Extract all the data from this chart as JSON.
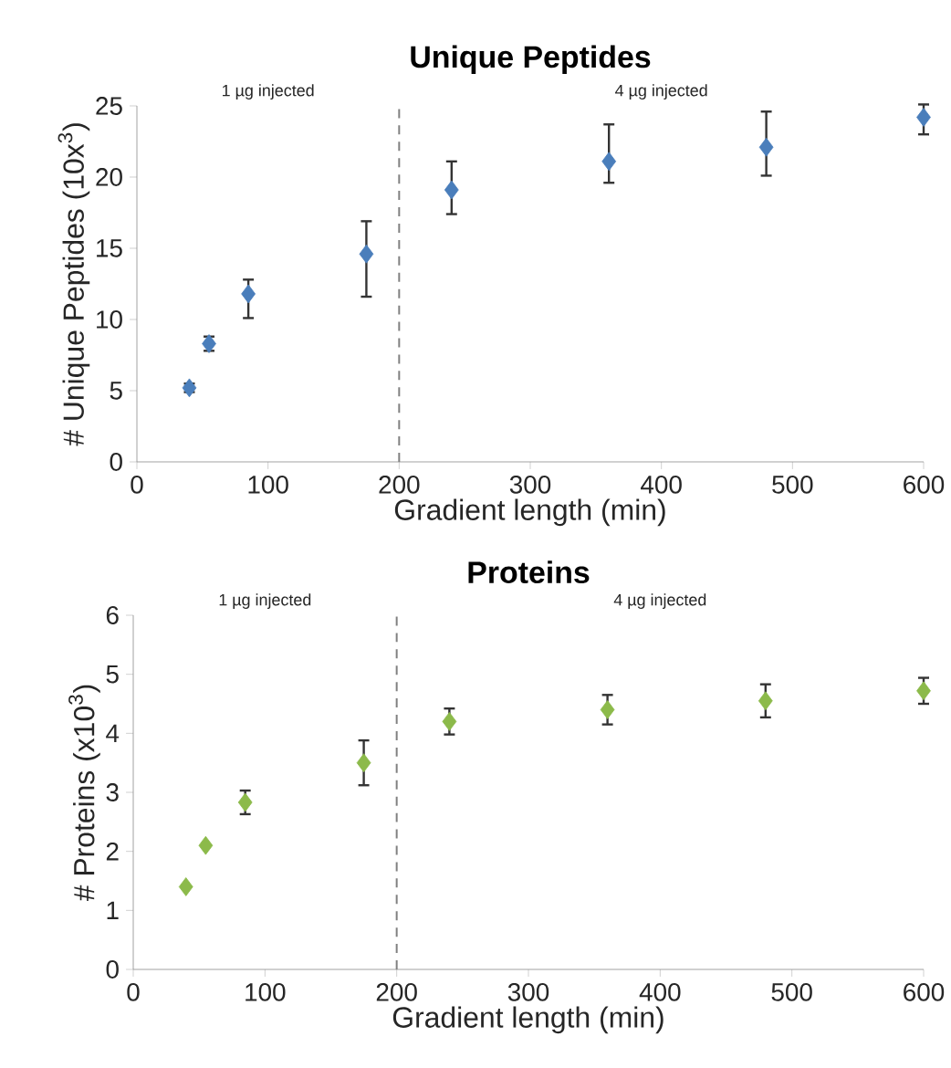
{
  "chart_data": [
    {
      "type": "scatter",
      "title": "Unique Peptides",
      "xlabel": "Gradient length (min)",
      "ylabel": "# Unique Peptides (10x$^{3}$)",
      "x": [
        40,
        55,
        85,
        175,
        240,
        360,
        480,
        600
      ],
      "values": [
        5.2,
        8.3,
        11.8,
        14.6,
        19.1,
        21.1,
        22.1,
        24.2
      ],
      "color": "#4a7ebb",
      "errors": [
        0.3,
        0.5,
        [
          10.1,
          12.8
        ],
        [
          11.6,
          16.9
        ],
        [
          17.4,
          21.1
        ],
        [
          19.6,
          23.7
        ],
        [
          20.1,
          24.6
        ],
        [
          23.0,
          25.1
        ]
      ],
      "xlim": [
        0,
        600
      ],
      "xticks": [
        0,
        100,
        200,
        300,
        400,
        500,
        600
      ],
      "ylim": [
        0,
        25
      ],
      "yticks": [
        0,
        5,
        10,
        15,
        20,
        25
      ],
      "marker": "diamond",
      "ref_lines": [
        {
          "axis": "x",
          "value": 200,
          "color": "#808080",
          "line_style": "dashed"
        }
      ],
      "annotations": [
        "1 µg injected",
        "4 µg injected"
      ]
    },
    {
      "type": "scatter",
      "title": "Proteins",
      "xlabel": "Gradient length (min)",
      "ylabel": "# Proteins (x10$^{3}$)",
      "x": [
        40,
        55,
        85,
        175,
        240,
        360,
        480,
        600
      ],
      "values": [
        1.4,
        2.1,
        2.83,
        3.5,
        4.2,
        4.4,
        4.55,
        4.72
      ],
      "color": "#8cba4a",
      "errors": [
        null,
        null,
        0.2,
        0.38,
        0.22,
        0.25,
        0.28,
        0.22
      ],
      "xlim": [
        0,
        600
      ],
      "xticks": [
        0,
        100,
        200,
        300,
        400,
        500,
        600
      ],
      "ylim": [
        0,
        6
      ],
      "yticks": [
        0,
        1,
        2,
        3,
        4,
        5,
        6
      ],
      "marker": "diamond",
      "ref_lines": [
        {
          "axis": "x",
          "value": 200,
          "color": "#808080",
          "line_style": "dashed"
        }
      ],
      "annotations": [
        "1 µg injected",
        "4 µg injected"
      ]
    }
  ]
}
